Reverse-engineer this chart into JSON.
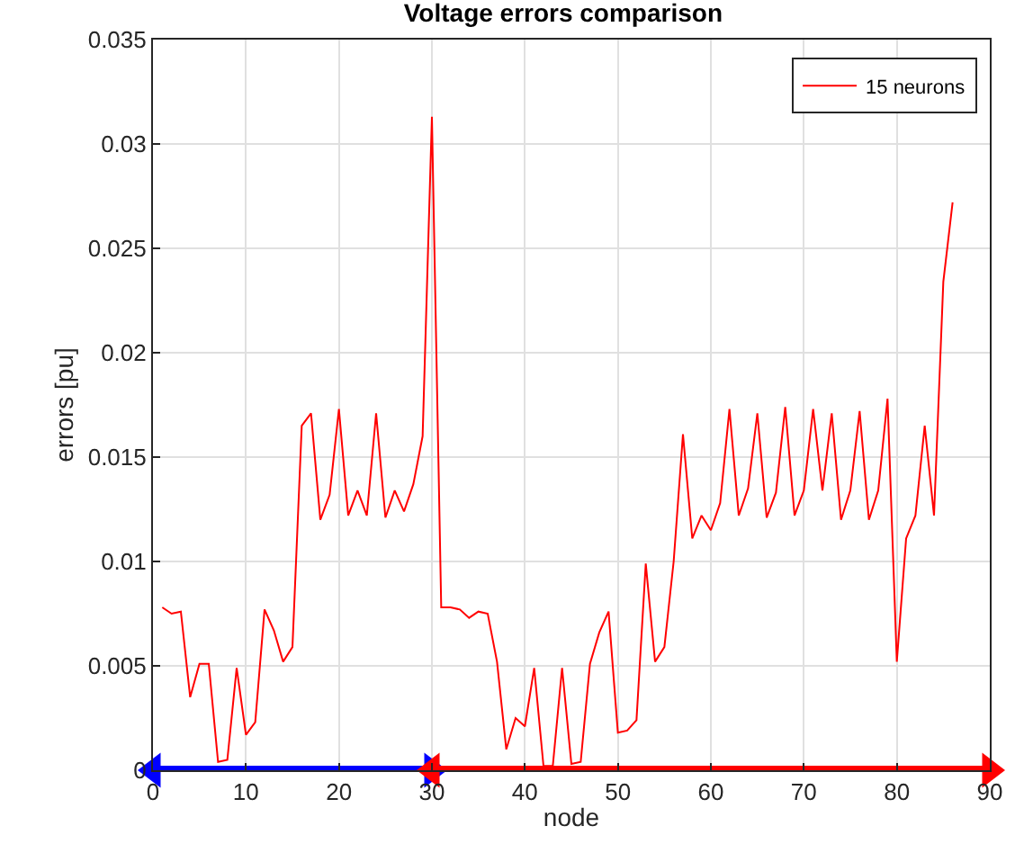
{
  "chart_data": {
    "type": "line",
    "title": "Voltage errors comparison",
    "xlabel": "node",
    "ylabel": "errors [pu]",
    "x": [
      1,
      2,
      3,
      4,
      5,
      6,
      7,
      8,
      9,
      10,
      11,
      12,
      13,
      14,
      15,
      16,
      17,
      18,
      19,
      20,
      21,
      22,
      23,
      24,
      25,
      26,
      27,
      28,
      29,
      30,
      31,
      32,
      33,
      34,
      35,
      36,
      37,
      38,
      39,
      40,
      41,
      42,
      43,
      44,
      45,
      46,
      47,
      48,
      49,
      50,
      51,
      52,
      53,
      54,
      55,
      56,
      57,
      58,
      59,
      60,
      61,
      62,
      63,
      64,
      65,
      66,
      67,
      68,
      69,
      70,
      71,
      72,
      73,
      74,
      75,
      76,
      77,
      78,
      79,
      80,
      81,
      82,
      83,
      84,
      85,
      86
    ],
    "series": [
      {
        "name": "15 neurons",
        "color": "#ff0000",
        "values": [
          0.0078,
          0.0075,
          0.0076,
          0.0035,
          0.0051,
          0.0051,
          0.0004,
          0.0005,
          0.0049,
          0.0017,
          0.0023,
          0.0077,
          0.0067,
          0.0052,
          0.0059,
          0.0165,
          0.0171,
          0.012,
          0.0132,
          0.0173,
          0.0122,
          0.0134,
          0.0122,
          0.0171,
          0.0121,
          0.0134,
          0.0124,
          0.0137,
          0.016,
          0.0313,
          0.0078,
          0.0078,
          0.0077,
          0.0073,
          0.0076,
          0.0075,
          0.0052,
          0.001,
          0.0025,
          0.0021,
          0.0049,
          0.0002,
          0.0002,
          0.0049,
          0.0003,
          0.0004,
          0.0051,
          0.0066,
          0.0076,
          0.0018,
          0.0019,
          0.0024,
          0.0099,
          0.0052,
          0.0059,
          0.01,
          0.0161,
          0.0111,
          0.0122,
          0.0115,
          0.0128,
          0.0173,
          0.0122,
          0.0135,
          0.0171,
          0.0121,
          0.0133,
          0.0174,
          0.0122,
          0.0134,
          0.0173,
          0.0134,
          0.0171,
          0.012,
          0.0134,
          0.0172,
          0.012,
          0.0134,
          0.0178,
          0.0052,
          0.0111,
          0.0122,
          0.0165,
          0.0122,
          0.0234,
          0.0272
        ]
      },
      {
        "type": "line",
        "color": "#0000ff",
        "x": [
          0,
          30
        ],
        "values": [
          0,
          0
        ],
        "marker": "triangle"
      },
      {
        "type": "line",
        "color": "#ff0000",
        "x": [
          30,
          90
        ],
        "values": [
          0,
          0
        ],
        "marker": "triangle"
      }
    ],
    "xlim": [
      0,
      90
    ],
    "xticks": [
      0,
      10,
      20,
      30,
      40,
      50,
      60,
      70,
      80,
      90
    ],
    "ylim": [
      0,
      0.035
    ],
    "yticks": [
      0,
      0.005,
      0.01,
      0.015,
      0.02,
      0.025,
      0.03,
      0.035
    ],
    "grid": true,
    "legend": "top right",
    "marker": "none",
    "line_style": "solid"
  }
}
